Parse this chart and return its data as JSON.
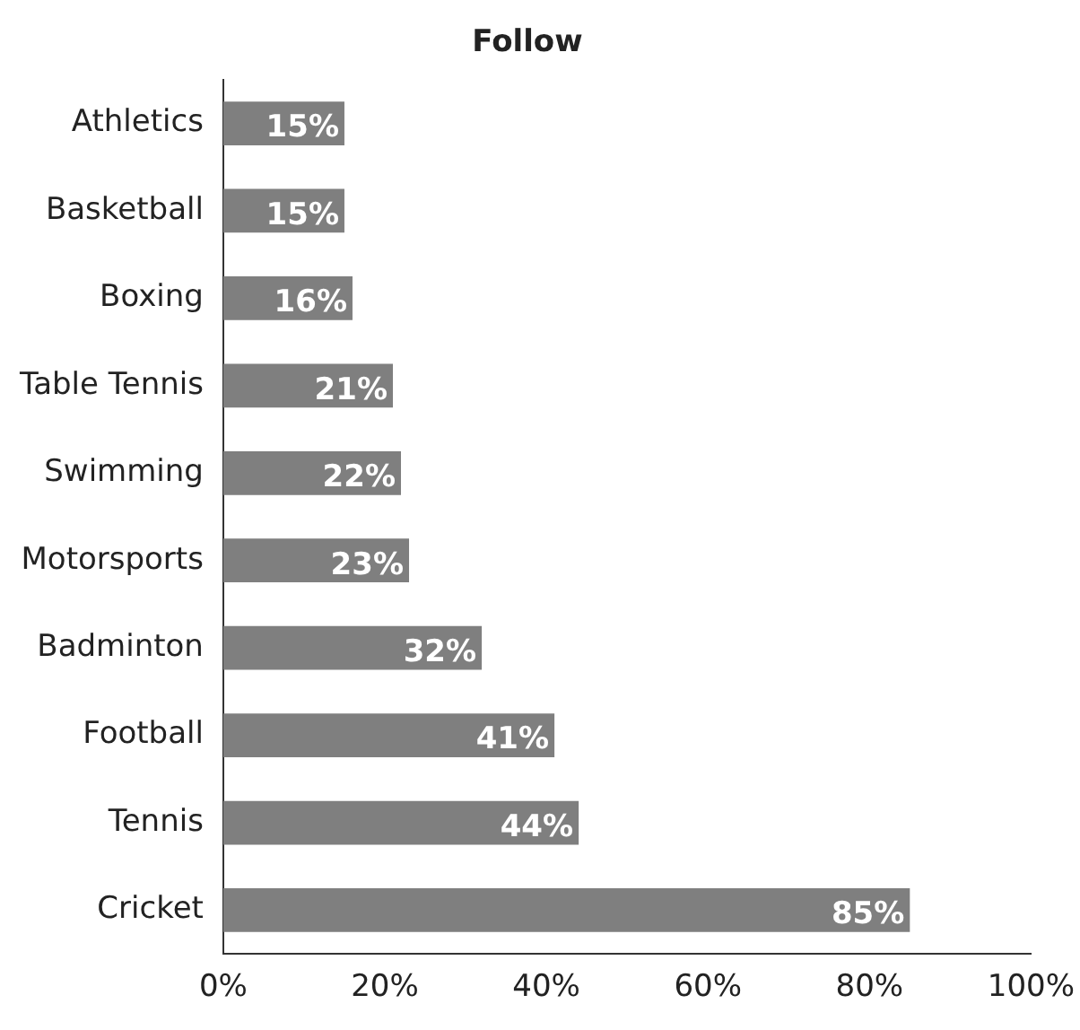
{
  "chart_data": {
    "type": "bar",
    "orientation": "horizontal",
    "title": "Follow",
    "categories": [
      "Athletics",
      "Basketball",
      "Boxing",
      "Table Tennis",
      "Swimming",
      "Motorsports",
      "Badminton",
      "Football",
      "Tennis",
      "Cricket"
    ],
    "values": [
      15,
      15,
      16,
      21,
      22,
      23,
      32,
      41,
      44,
      85
    ],
    "value_labels": [
      "15%",
      "15%",
      "16%",
      "21%",
      "22%",
      "23%",
      "32%",
      "41%",
      "44%",
      "85%"
    ],
    "color": "#7f7f7f",
    "xlim": [
      0,
      100
    ],
    "xticks": [
      {
        "value": 0,
        "label": "0%"
      },
      {
        "value": 20,
        "label": "20%"
      },
      {
        "value": 40,
        "label": "40%"
      },
      {
        "value": 60,
        "label": "60%"
      },
      {
        "value": 80,
        "label": "80%"
      },
      {
        "value": 100,
        "label": "100%"
      }
    ],
    "grid": false,
    "legend": false
  }
}
